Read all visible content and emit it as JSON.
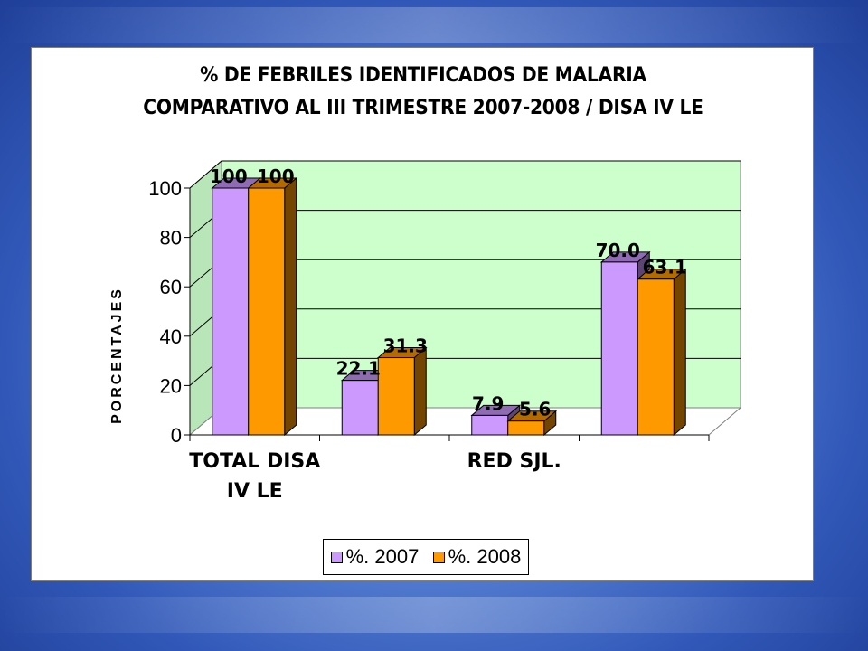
{
  "chart_data": {
    "type": "bar",
    "title": [
      "% DE FEBRILES IDENTIFICADOS DE MALARIA",
      "COMPARATIVO AL III TRIMESTRE  2007-2008 / DISA IV LE"
    ],
    "ylabel": "PORCENTAJES",
    "xlabel": "",
    "ylim": [
      0,
      100
    ],
    "yticks": [
      "0",
      "20",
      "40",
      "60",
      "80",
      "100"
    ],
    "categories": [
      {
        "lines": [
          "TOTAL DISA",
          "IV LE"
        ]
      },
      {
        "lines": [
          ""
        ]
      },
      {
        "lines": [
          "RED SJL."
        ]
      },
      {
        "lines": [
          ""
        ]
      }
    ],
    "series": [
      {
        "name": "%. 2007",
        "color": "#cc99ff",
        "values": [
          100,
          22.1,
          7.9,
          70.0
        ],
        "labels": [
          "100",
          "22.1",
          "7.9",
          "70.0"
        ]
      },
      {
        "name": "%. 2008",
        "color": "#ff9900",
        "values": [
          100,
          31.3,
          5.6,
          63.1
        ],
        "labels": [
          "100",
          "31.3",
          "5.6",
          "63.1"
        ]
      }
    ],
    "plot_background": "#ccffcc",
    "grid": true,
    "legend": "bottom"
  }
}
